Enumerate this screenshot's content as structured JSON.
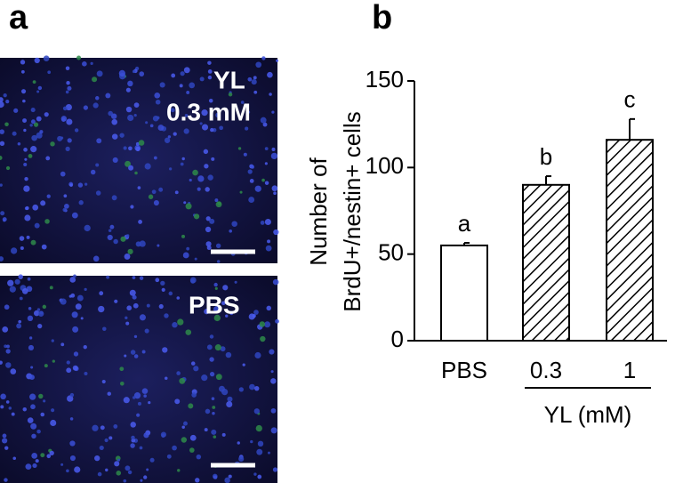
{
  "panel_labels": [
    "a",
    "b"
  ],
  "images": [
    {
      "label_lines": [
        "YL",
        "0.3 mM"
      ]
    },
    {
      "label_lines": [
        "PBS"
      ]
    }
  ],
  "chart_data": {
    "type": "bar",
    "y_label_lines": [
      "Number of",
      "BrdU+/nestin+ cells"
    ],
    "categories": [
      "PBS",
      "0.3",
      "1"
    ],
    "values": [
      55,
      90,
      116
    ],
    "errors": [
      1.5,
      5,
      12
    ],
    "annotations": [
      "a",
      "b",
      "c"
    ],
    "fills": [
      "plain",
      "hatch",
      "hatch"
    ],
    "group_label": "YL (mM)",
    "ylim": [
      0,
      150
    ],
    "yticks": [
      0,
      50,
      100,
      150
    ]
  }
}
